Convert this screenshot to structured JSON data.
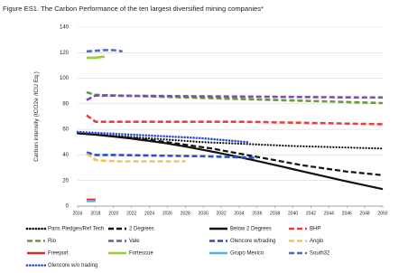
{
  "chart_data": {
    "type": "line",
    "title": "Figure ES1. The Carbon Performance of the ten largest diversified mining companies*",
    "y_label": "Carbon intensity (tCO2e /tCU Eq.)",
    "x": [
      2016,
      2017,
      2018,
      2019,
      2020,
      2021,
      2022,
      2023,
      2024,
      2025,
      2026,
      2027,
      2028,
      2029,
      2030,
      2031,
      2032,
      2033,
      2034,
      2035,
      2036,
      2037,
      2038,
      2039,
      2040,
      2041,
      2042,
      2043,
      2044,
      2045,
      2046,
      2047,
      2048,
      2049,
      2050
    ],
    "xlim": [
      2016,
      2050
    ],
    "xticks": [
      2016,
      2018,
      2020,
      2022,
      2024,
      2026,
      2028,
      2030,
      2032,
      2034,
      2036,
      2038,
      2040,
      2042,
      2044,
      2046,
      2048,
      2050
    ],
    "ylim": [
      0,
      140
    ],
    "yticks": [
      0,
      20,
      40,
      60,
      80,
      100,
      120,
      140
    ],
    "grid": true,
    "series": [
      {
        "name": "Paris Pledges/Ref Tech",
        "color": "#111111",
        "style": "dotted",
        "values": [
          57,
          56.5,
          56,
          55.5,
          55,
          54.5,
          54,
          53.5,
          53,
          52.5,
          52,
          51.5,
          51,
          50.5,
          50,
          49.7,
          49.4,
          49.1,
          48.8,
          48.5,
          48.2,
          47.9,
          47.6,
          47.3,
          47,
          46.8,
          46.6,
          46.4,
          46.2,
          46,
          45.8,
          45.6,
          45.4,
          45.2,
          45
        ]
      },
      {
        "name": "2 Degrees",
        "color": "#111111",
        "style": "dashed",
        "values": [
          57,
          56.5,
          56,
          55.3,
          54.6,
          53.9,
          53.2,
          52.5,
          51.7,
          50.9,
          50,
          49,
          48,
          47,
          46,
          45,
          43.7,
          42.4,
          41.1,
          39.8,
          38.5,
          37.2,
          35.9,
          34.6,
          33.3,
          32,
          31,
          30,
          29,
          28,
          27,
          26.3,
          25.6,
          24.9,
          24.2
        ]
      },
      {
        "name": "Below 2 Degrees",
        "color": "#111111",
        "style": "solid",
        "values": [
          57,
          56.4,
          55.8,
          55.1,
          54.4,
          53.6,
          52.8,
          51.9,
          51,
          50,
          49,
          47.8,
          46.6,
          45.3,
          44,
          42.6,
          41.2,
          39.8,
          38.3,
          36.8,
          35.3,
          33.7,
          32.1,
          30.5,
          28.9,
          27.3,
          25.7,
          24.1,
          22.5,
          20.9,
          19.3,
          17.8,
          16.3,
          14.8,
          13.3
        ]
      },
      {
        "name": "BHP",
        "color": "#e8413c",
        "style": "dashed",
        "values": [
          null,
          71,
          66,
          66,
          66,
          66,
          66,
          66,
          66,
          66,
          66,
          66,
          66,
          66,
          66,
          66,
          66,
          66,
          66,
          65.9,
          65.8,
          65.7,
          65.5,
          65.4,
          65.3,
          65.2,
          65,
          64.9,
          64.8,
          64.7,
          64.5,
          64.4,
          64.3,
          64.2,
          64
        ]
      },
      {
        "name": "Rio",
        "color": "#6b9a3c",
        "style": "dashed",
        "values": [
          null,
          89,
          87,
          86.8,
          86.6,
          86.4,
          86.2,
          86,
          85.8,
          85.6,
          85.4,
          85.2,
          85,
          84.8,
          84.6,
          84.4,
          84.2,
          84,
          83.8,
          83.6,
          83.4,
          83.2,
          83,
          82.8,
          82.6,
          82.4,
          82.2,
          82,
          81.8,
          81.6,
          81.4,
          81.2,
          81,
          80.8,
          80.6
        ]
      },
      {
        "name": "Vale",
        "color": "#7e4fa8",
        "style": "dashed",
        "values": [
          null,
          83,
          86.5,
          86.4,
          86.4,
          86.3,
          86.3,
          86.2,
          86.2,
          86.1,
          86.1,
          86,
          86,
          85.9,
          85.9,
          85.8,
          85.8,
          85.7,
          85.7,
          85.6,
          85.6,
          85.5,
          85.5,
          85.4,
          85.4,
          85.3,
          85.3,
          85.2,
          85.2,
          85.1,
          85.1,
          85,
          85,
          85,
          85
        ]
      },
      {
        "name": "Glencore w/trading",
        "color": "#2a4fd0",
        "style": "dashed",
        "values": [
          null,
          42,
          40,
          40,
          40,
          39.9,
          39.8,
          39.7,
          39.6,
          39.5,
          39.4,
          39.3,
          39.2,
          39.1,
          39,
          38.8,
          38.6,
          38.4,
          38.2,
          38,
          37.8,
          null,
          null,
          null,
          null,
          null,
          null,
          null,
          null,
          null,
          null,
          null,
          null,
          null,
          null
        ]
      },
      {
        "name": "Anglo",
        "color": "#f1c55a",
        "style": "dashed",
        "values": [
          null,
          41,
          36,
          35.5,
          35.2,
          35,
          35,
          35,
          35,
          35,
          35,
          35,
          35,
          null,
          null,
          null,
          null,
          null,
          null,
          null,
          null,
          null,
          null,
          null,
          null,
          null,
          null,
          null,
          null,
          null,
          null,
          null,
          null,
          null,
          null
        ]
      },
      {
        "name": "Freeport",
        "color": "#d63030",
        "style": "solid",
        "values": [
          null,
          5,
          5,
          null,
          null,
          null,
          null,
          null,
          null,
          null,
          null,
          null,
          null,
          null,
          null,
          null,
          null,
          null,
          null,
          null,
          null,
          null,
          null,
          null,
          null,
          null,
          null,
          null,
          null,
          null,
          null,
          null,
          null,
          null,
          null
        ]
      },
      {
        "name": "Fortescue",
        "color": "#9ccc3c",
        "style": "solid",
        "values": [
          null,
          116,
          116,
          117,
          null,
          null,
          null,
          null,
          null,
          null,
          null,
          null,
          null,
          null,
          null,
          null,
          null,
          null,
          null,
          null,
          null,
          null,
          null,
          null,
          null,
          null,
          null,
          null,
          null,
          null,
          null,
          null,
          null,
          null,
          null
        ]
      },
      {
        "name": "Grupo Mexico",
        "color": "#4fb3e6",
        "style": "solid",
        "values": [
          null,
          4,
          4,
          null,
          null,
          null,
          null,
          null,
          null,
          null,
          null,
          null,
          null,
          null,
          null,
          null,
          null,
          null,
          null,
          null,
          null,
          null,
          null,
          null,
          null,
          null,
          null,
          null,
          null,
          null,
          null,
          null,
          null,
          null,
          null
        ]
      },
      {
        "name": "South32",
        "color": "#4a6fc8",
        "style": "dashed",
        "values": [
          null,
          121,
          121.5,
          122,
          122,
          121,
          null,
          null,
          null,
          null,
          null,
          null,
          null,
          null,
          null,
          null,
          null,
          null,
          null,
          null,
          null,
          null,
          null,
          null,
          null,
          null,
          null,
          null,
          null,
          null,
          null,
          null,
          null,
          null,
          null
        ]
      },
      {
        "name": "Glencore w/o trading",
        "color": "#2a4fd0",
        "style": "dotted",
        "values": [
          58,
          57.6,
          57.3,
          56.9,
          56.6,
          56.2,
          55.9,
          55.5,
          55.2,
          54.8,
          54.5,
          54.1,
          53.8,
          53.4,
          53,
          52.4,
          51.8,
          51.2,
          50.6,
          50,
          null,
          null,
          null,
          null,
          null,
          null,
          null,
          null,
          null,
          null,
          null,
          null,
          null,
          null,
          null
        ]
      }
    ]
  }
}
